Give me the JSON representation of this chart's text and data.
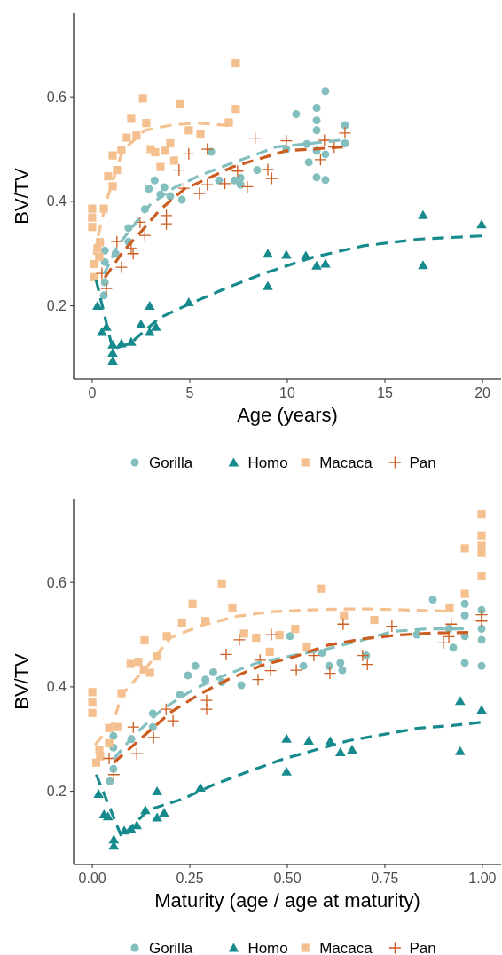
{
  "chart_data": [
    {
      "type": "scatter",
      "xlabel": "Age (years)",
      "ylabel": "BV/TV",
      "xlim": [
        -0.95,
        20.95
      ],
      "ylim": [
        0.06,
        0.76
      ],
      "xticks": [
        0,
        5,
        10,
        15,
        20
      ],
      "yticks": [
        0.2,
        0.4,
        0.6
      ],
      "legend": "bottom",
      "series": [
        {
          "name": "Gorilla",
          "marker": "circle",
          "color": "#84bfbf",
          "x": [
            0.6,
            0.65,
            0.65,
            0.65,
            1.2,
            1.86,
            1.86,
            2.7,
            2.9,
            3.2,
            3.5,
            3.7,
            4.0,
            4.6,
            6.1,
            6.5,
            7.3,
            7.6,
            7.6,
            8.45,
            9.95,
            10.45,
            11.0,
            11.1,
            11.5,
            11.5,
            11.5,
            11.5,
            11.5,
            11.95,
            11.95,
            11.95,
            12.95,
            12.95
          ],
          "values": [
            0.22,
            0.245,
            0.284,
            0.306,
            0.3,
            0.323,
            0.349,
            0.385,
            0.424,
            0.44,
            0.413,
            0.427,
            0.41,
            0.403,
            0.495,
            0.44,
            0.44,
            0.445,
            0.432,
            0.46,
            0.5,
            0.567,
            0.51,
            0.475,
            0.579,
            0.555,
            0.536,
            0.497,
            0.446,
            0.611,
            0.49,
            0.441,
            0.546,
            0.511
          ]
        },
        {
          "name": "Homo",
          "type": "scatter",
          "marker": "triangle",
          "color": "#178a8e",
          "x": [
            0.27,
            0.5,
            0.73,
            1.05,
            1.05,
            1.05,
            1.5,
            2.0,
            2.5,
            2.95,
            2.95,
            3.27,
            4.95,
            9.0,
            9.0,
            9.95,
            10.95,
            11.5,
            11.95,
            16.95,
            16.95,
            19.95
          ],
          "values": [
            0.2,
            0.15,
            0.16,
            0.126,
            0.11,
            0.095,
            0.128,
            0.131,
            0.165,
            0.2,
            0.15,
            0.16,
            0.207,
            0.3,
            0.238,
            0.298,
            0.296,
            0.277,
            0.281,
            0.374,
            0.278,
            0.356
          ]
        },
        {
          "name": "Macaca",
          "type": "scatter",
          "marker": "square",
          "color": "#f5c08f",
          "x": [
            0.1,
            0.12,
            0.36,
            0.27,
            0.4,
            0,
            0,
            0,
            0.6,
            0.82,
            1.05,
            1.27,
            1.05,
            1.5,
            1.77,
            2.0,
            2.27,
            2.6,
            2.77,
            3.0,
            3.23,
            3.5,
            3.73,
            4.0,
            4.2,
            4.5,
            4.95,
            5.55,
            7.36,
            7.36,
            7.0
          ],
          "values": [
            0.255,
            0.28,
            0.294,
            0.31,
            0.322,
            0.351,
            0.369,
            0.386,
            0.386,
            0.448,
            0.429,
            0.46,
            0.488,
            0.498,
            0.522,
            0.558,
            0.526,
            0.597,
            0.55,
            0.5,
            0.494,
            0.466,
            0.497,
            0.511,
            0.478,
            0.586,
            0.536,
            0.528,
            0.664,
            0.577,
            0.551
          ]
        },
        {
          "name": "Pan",
          "type": "scatter",
          "marker": "cross",
          "color": "#cd5c1f",
          "x": [
            0.73,
            0.5,
            1.5,
            1.27,
            2.0,
            2.1,
            2.45,
            2.7,
            3.8,
            3.8,
            4.45,
            4.7,
            4.95,
            5.5,
            5.9,
            5.9,
            6.8,
            7.45,
            7.95,
            8.35,
            9.0,
            9.2,
            9.95,
            11.7,
            11.9,
            12.4,
            12.95
          ],
          "values": [
            0.233,
            0.262,
            0.274,
            0.323,
            0.31,
            0.3,
            0.36,
            0.335,
            0.373,
            0.357,
            0.46,
            0.425,
            0.491,
            0.415,
            0.5,
            0.432,
            0.434,
            0.458,
            0.428,
            0.521,
            0.461,
            0.444,
            0.516,
            0.48,
            0.517,
            0.504,
            0.531
          ]
        },
        {
          "type": "line",
          "line_style": "dashed",
          "color": "#84bfbf",
          "x": [
            0.6,
            1.3,
            3,
            4.2,
            5.6,
            6.8,
            9.4,
            12.7
          ],
          "values": [
            0.26,
            0.315,
            0.395,
            0.426,
            0.451,
            0.468,
            0.504,
            0.517
          ]
        },
        {
          "type": "line",
          "line_style": "dashed",
          "color": "#178a8e",
          "x": [
            0.2,
            1.05,
            1.95,
            3.45,
            5,
            6,
            6.8,
            8.8,
            11.3,
            13.9,
            16.8,
            19.95
          ],
          "values": [
            0.25,
            0.117,
            0.128,
            0.177,
            0.204,
            0.22,
            0.233,
            0.262,
            0.293,
            0.315,
            0.328,
            0.334
          ]
        },
        {
          "type": "line",
          "line_style": "dashed",
          "color": "#f5c08f",
          "x": [
            0.1,
            0.4,
            0.73,
            1.55,
            2.7,
            4.05,
            5.4,
            7.0
          ],
          "values": [
            0.298,
            0.349,
            0.4,
            0.497,
            0.536,
            0.546,
            0.55,
            0.545
          ]
        },
        {
          "type": "line",
          "line_style": "dashed",
          "color": "#cd5c1f",
          "x": [
            0.65,
            1.6,
            2.55,
            3.45,
            4.7,
            5.7,
            7.2,
            9.95,
            12.85
          ],
          "values": [
            0.254,
            0.305,
            0.344,
            0.383,
            0.423,
            0.44,
            0.466,
            0.497,
            0.504
          ]
        }
      ]
    },
    {
      "type": "scatter",
      "xlabel": "Maturity (age / age at maturity)",
      "ylabel": "BV/TV",
      "xlim": [
        -0.048,
        1.048
      ],
      "ylim": [
        0.06,
        0.76
      ],
      "xticks": [
        {
          "value": 0,
          "label": "0.00"
        },
        {
          "value": 0.25,
          "label": "0.25"
        },
        {
          "value": 0.5,
          "label": "0.50"
        },
        {
          "value": 0.75,
          "label": "0.75"
        },
        {
          "value": 1,
          "label": "1.00"
        }
      ],
      "yticks": [
        0.2,
        0.4,
        0.6
      ],
      "legend": "bottom",
      "series": [
        {
          "name": "Gorilla",
          "marker": "circle",
          "color": "#84bfbf",
          "x": [
            0.045,
            0.054,
            0.054,
            0.054,
            0.1,
            0.155,
            0.155,
            0.225,
            0.245,
            0.264,
            0.29,
            0.31,
            0.332,
            0.382,
            0.507,
            0.541,
            0.589,
            0.607,
            0.636,
            0.641,
            0.702,
            0.832,
            0.873,
            0.914,
            0.925,
            0.955,
            0.955,
            0.955,
            0.955,
            0.998,
            0.998,
            0.998,
            0.998
          ],
          "values": [
            0.219,
            0.243,
            0.284,
            0.306,
            0.3,
            0.323,
            0.349,
            0.385,
            0.422,
            0.44,
            0.414,
            0.428,
            0.409,
            0.403,
            0.497,
            0.44,
            0.465,
            0.44,
            0.446,
            0.432,
            0.46,
            0.5,
            0.567,
            0.511,
            0.475,
            0.559,
            0.537,
            0.497,
            0.446,
            0.547,
            0.511,
            0.49,
            0.44
          ]
        },
        {
          "name": "Homo",
          "type": "scatter",
          "marker": "triangle",
          "color": "#178a8e",
          "x": [
            0.016,
            0.03,
            0.04,
            0.055,
            0.055,
            0.082,
            0.1,
            0.114,
            0.136,
            0.166,
            0.166,
            0.184,
            0.277,
            0.498,
            0.498,
            0.555,
            0.61,
            0.636,
            0.666,
            0.943,
            0.943,
            0.998
          ],
          "values": [
            0.195,
            0.156,
            0.152,
            0.108,
            0.096,
            0.125,
            0.127,
            0.135,
            0.164,
            0.2,
            0.15,
            0.159,
            0.207,
            0.301,
            0.238,
            0.297,
            0.296,
            0.275,
            0.28,
            0.373,
            0.277,
            0.356
          ]
        },
        {
          "name": "Macaca",
          "type": "scatter",
          "marker": "square",
          "color": "#f5c08f",
          "x": [
            0,
            0,
            0,
            0.01,
            0.018,
            0.02,
            0.043,
            0.043,
            0.064,
            0.075,
            0.098,
            0.118,
            0.132,
            0.148,
            0.166,
            0.134,
            0.191,
            0.23,
            0.257,
            0.29,
            0.332,
            0.359,
            0.389,
            0.42,
            0.455,
            0.48,
            0.52,
            0.55,
            0.586,
            0.645,
            0.723,
            0.916,
            0.955,
            0.955,
            0.998,
            0.998,
            0.998,
            0.998,
            0.998
          ],
          "values": [
            0.39,
            0.37,
            0.35,
            0.255,
            0.279,
            0.267,
            0.292,
            0.321,
            0.323,
            0.388,
            0.444,
            0.448,
            0.433,
            0.427,
            0.458,
            0.489,
            0.497,
            0.523,
            0.559,
            0.526,
            0.598,
            0.552,
            0.502,
            0.494,
            0.467,
            0.499,
            0.511,
            0.477,
            0.588,
            0.537,
            0.528,
            0.552,
            0.665,
            0.578,
            0.73,
            0.69,
            0.67,
            0.656,
            0.612
          ]
        },
        {
          "name": "Pan",
          "type": "scatter",
          "marker": "cross",
          "color": "#cd5c1f",
          "x": [
            0.055,
            0.043,
            0.114,
            0.105,
            0.157,
            0.189,
            0.207,
            0.293,
            0.293,
            0.343,
            0.377,
            0.425,
            0.43,
            0.457,
            0.459,
            0.523,
            0.568,
            0.609,
            0.643,
            0.693,
            0.705,
            0.768,
            0.9,
            0.914,
            0.92,
            0.998,
            0.998
          ],
          "values": [
            0.232,
            0.263,
            0.272,
            0.323,
            0.303,
            0.357,
            0.335,
            0.374,
            0.357,
            0.462,
            0.49,
            0.414,
            0.451,
            0.431,
            0.5,
            0.432,
            0.46,
            0.426,
            0.52,
            0.46,
            0.443,
            0.516,
            0.484,
            0.496,
            0.52,
            0.538,
            0.526
          ]
        },
        {
          "type": "line",
          "line_style": "dashed",
          "color": "#84bfbf",
          "x": [
            0.055,
            0.105,
            0.177,
            0.259,
            0.332,
            0.423,
            0.514,
            0.6,
            0.689,
            0.77,
            0.861,
            0.952
          ],
          "values": [
            0.262,
            0.306,
            0.356,
            0.395,
            0.42,
            0.446,
            0.46,
            0.472,
            0.489,
            0.506,
            0.511,
            0.511
          ]
        },
        {
          "type": "line",
          "line_style": "dashed",
          "color": "#178a8e",
          "x": [
            0.01,
            0.075,
            0.143,
            0.234,
            0.309,
            0.4,
            0.486,
            0.575,
            0.657,
            0.748,
            0.836,
            0.923,
            0.995
          ],
          "values": [
            0.232,
            0.113,
            0.164,
            0.186,
            0.212,
            0.238,
            0.261,
            0.28,
            0.297,
            0.309,
            0.321,
            0.326,
            0.332
          ]
        },
        {
          "type": "line",
          "line_style": "dashed",
          "color": "#f5c08f",
          "x": [
            0.007,
            0.052,
            0.077,
            0.145,
            0.2,
            0.282,
            0.37,
            0.461,
            0.548,
            0.639,
            0.725,
            0.816,
            0.907
          ],
          "values": [
            0.289,
            0.33,
            0.386,
            0.443,
            0.494,
            0.518,
            0.535,
            0.544,
            0.547,
            0.549,
            0.549,
            0.547,
            0.545
          ]
        },
        {
          "type": "line",
          "line_style": "dashed",
          "color": "#cd5c1f",
          "x": [
            0.055,
            0.132,
            0.202,
            0.275,
            0.35,
            0.434,
            0.52,
            0.605,
            0.695,
            0.782,
            0.873,
            0.964
          ],
          "values": [
            0.255,
            0.306,
            0.352,
            0.386,
            0.415,
            0.441,
            0.458,
            0.48,
            0.492,
            0.499,
            0.503,
            0.504
          ]
        }
      ]
    }
  ]
}
